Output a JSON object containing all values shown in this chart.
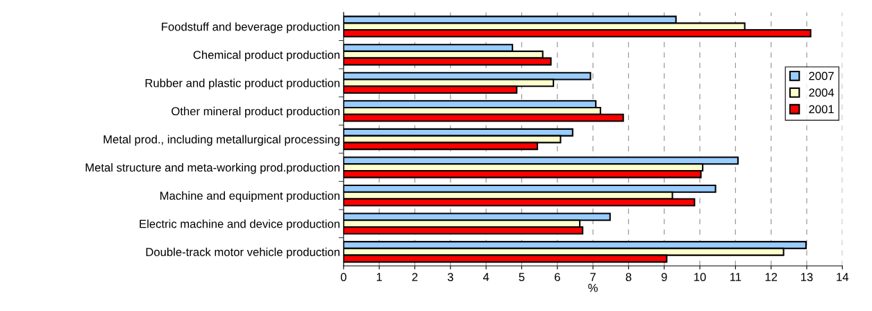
{
  "chart_data": {
    "type": "bar",
    "orientation": "horizontal",
    "xlabel": "%",
    "categories": [
      "Foodstuff and beverage production",
      "Chemical product production",
      "Rubber and plastic product production",
      "Other mineral product production",
      "Metal prod., including metallurgical processing",
      "Metal structure and meta-working prod.production",
      "Machine and equipment production",
      "Electric machine and device production",
      "Double-track motor vehicle production"
    ],
    "series": [
      {
        "name": "2007",
        "color": "#99ccff",
        "values": [
          9.33,
          4.74,
          6.93,
          7.08,
          6.43,
          11.07,
          10.44,
          7.48,
          12.98
        ]
      },
      {
        "name": "2004",
        "color": "#ffffcc",
        "values": [
          11.26,
          5.59,
          5.89,
          7.21,
          6.09,
          10.08,
          9.23,
          6.63,
          12.35
        ]
      },
      {
        "name": "2001",
        "color": "#ff0000",
        "values": [
          13.11,
          5.82,
          4.86,
          7.85,
          5.44,
          10.03,
          9.85,
          6.71,
          9.07
        ]
      }
    ],
    "xlim": [
      0,
      14
    ],
    "xticks": [
      0,
      1,
      2,
      3,
      4,
      5,
      6,
      7,
      8,
      9,
      10,
      11,
      12,
      13,
      14
    ],
    "grid": "x",
    "legend": "right"
  }
}
